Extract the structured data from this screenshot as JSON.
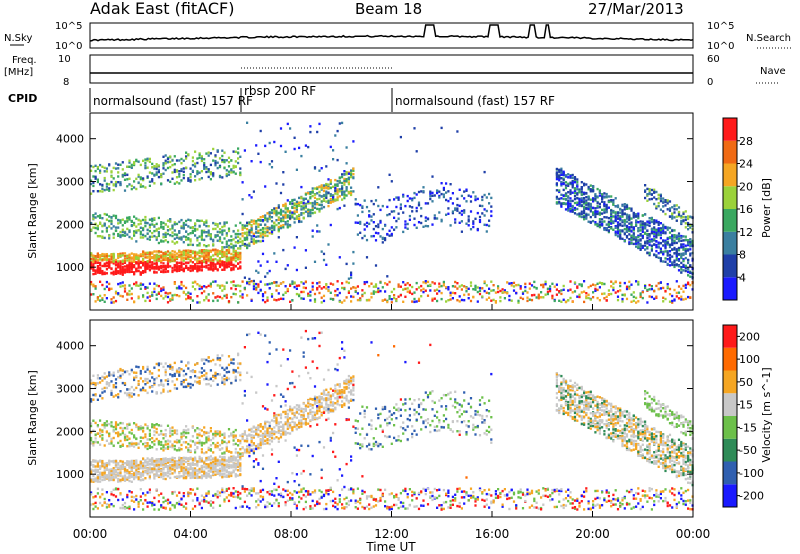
{
  "header": {
    "station": "Adak East (fitACF)",
    "beam": "Beam 18",
    "date": "27/Mar/2013"
  },
  "status_panels": {
    "nsky_label": "N.Sky",
    "nsky_ticks": [
      "10^5",
      "10^0"
    ],
    "nsearch_label": "N.Search",
    "nsearch_ticks": [
      "10^5",
      "10^0"
    ],
    "freq_label": "Freq.",
    "freq_unit": "[MHz]",
    "freq_ticks": [
      "10",
      "8"
    ],
    "nave_label": "Nave",
    "nave_ticks": [
      "60",
      "0"
    ],
    "cpid_label": "CPID",
    "cpid_segments": [
      {
        "label": "normalsound (fast) 157 RF",
        "start": 0,
        "end": 6
      },
      {
        "label": "rbsp 200 RF",
        "start": 6,
        "end": 12
      },
      {
        "label": "normalsound (fast) 157 RF",
        "start": 12,
        "end": 24
      }
    ]
  },
  "chart_data": [
    {
      "type": "heatmap",
      "panel": "power",
      "ylabel": "Slant Range [km]",
      "ylim": [
        0,
        4600
      ],
      "yticks": [
        "1000",
        "2000",
        "3000",
        "4000"
      ],
      "colorbar_label": "Power [dB]",
      "colorbar_ticks": [
        "4",
        "8",
        "12",
        "16",
        "20",
        "24",
        "28"
      ],
      "colorbar_range": [
        0,
        32
      ],
      "colors": [
        "#1a1aff",
        "#1f3fa8",
        "#3a7fa0",
        "#3aa860",
        "#9bd23a",
        "#f5a623",
        "#f06a14",
        "#ff1a1a"
      ]
    },
    {
      "type": "heatmap",
      "panel": "velocity",
      "ylabel": "Slant Range [km]",
      "ylim": [
        0,
        4600
      ],
      "yticks": [
        "1000",
        "2000",
        "3000",
        "4000"
      ],
      "colorbar_label": "Velocity [m s^-1]",
      "colorbar_ticks": [
        "200",
        "100",
        "50",
        "15",
        "-15",
        "-50",
        "-100",
        "-200"
      ],
      "colors": [
        "#1a1aff",
        "#2f5fb0",
        "#2e8b57",
        "#6cc04a",
        "#c8c8c8",
        "#f5a623",
        "#ff6a00",
        "#ff1a1a"
      ]
    }
  ],
  "xaxis": {
    "label": "Time UT",
    "ticks": [
      "00:00",
      "04:00",
      "08:00",
      "12:00",
      "16:00",
      "20:00",
      "00:00"
    ],
    "range_hours": [
      0,
      24
    ]
  }
}
